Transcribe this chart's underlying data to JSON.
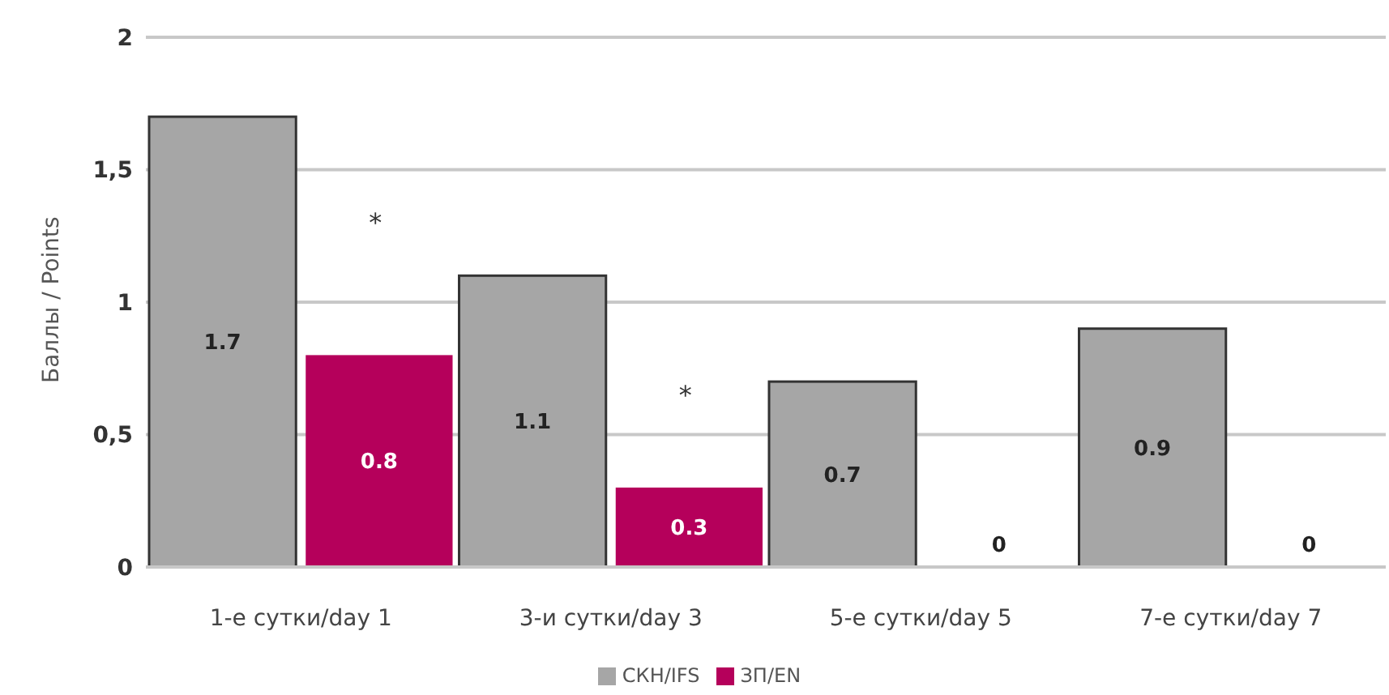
{
  "chart_data": {
    "type": "bar",
    "ylabel": "Баллы / Points",
    "categories": [
      "1-е сутки/day 1",
      "3-и сутки/day 3",
      "5-е сутки/day 5",
      "7-е сутки/day 7"
    ],
    "series": [
      {
        "name": "СКН/IFS",
        "color": "#a6a6a6",
        "values": [
          1.7,
          1.1,
          0.7,
          0.9
        ]
      },
      {
        "name": "ЗП/EN",
        "color": "#b5005b",
        "values": [
          0.8,
          0.3,
          0,
          0
        ]
      }
    ],
    "ylim": [
      0,
      2
    ],
    "yticks": [
      {
        "value": 0,
        "label": "0"
      },
      {
        "value": 0.5,
        "label": "0,5"
      },
      {
        "value": 1,
        "label": "1"
      },
      {
        "value": 1.5,
        "label": "1,5"
      },
      {
        "value": 2,
        "label": "2"
      }
    ],
    "grid": "y",
    "legend": "bottom",
    "data_labels": true,
    "annotations": [
      {
        "text": "*",
        "x": "1-е сутки/day 1",
        "y": 1.3
      },
      {
        "text": "*",
        "x": "3-и сутки/day 3",
        "y": 0.65
      }
    ]
  }
}
